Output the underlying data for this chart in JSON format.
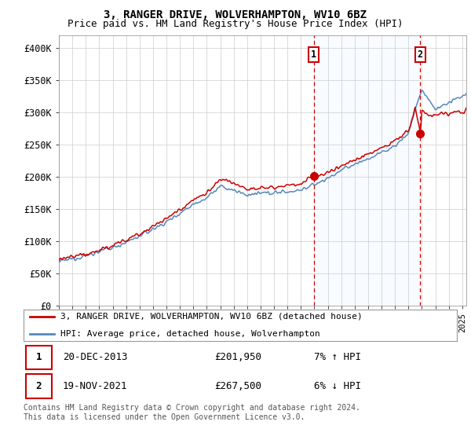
{
  "title": "3, RANGER DRIVE, WOLVERHAMPTON, WV10 6BZ",
  "subtitle": "Price paid vs. HM Land Registry's House Price Index (HPI)",
  "ylabel_ticks": [
    "£0",
    "£50K",
    "£100K",
    "£150K",
    "£200K",
    "£250K",
    "£300K",
    "£350K",
    "£400K"
  ],
  "ytick_values": [
    0,
    50000,
    100000,
    150000,
    200000,
    250000,
    300000,
    350000,
    400000
  ],
  "ylim": [
    0,
    420000
  ],
  "xlim_start": 1995.0,
  "xlim_end": 2025.3,
  "transaction1": {
    "date_num": 2013.97,
    "price": 201950,
    "label": "1"
  },
  "transaction2": {
    "date_num": 2021.88,
    "price": 267500,
    "label": "2"
  },
  "vline1_x": 2013.97,
  "vline2_x": 2021.88,
  "shade_start": 2013.97,
  "shade_end": 2021.88,
  "legend_label_red": "3, RANGER DRIVE, WOLVERHAMPTON, WV10 6BZ (detached house)",
  "legend_label_blue": "HPI: Average price, detached house, Wolverhampton",
  "footnote": "Contains HM Land Registry data © Crown copyright and database right 2024.\nThis data is licensed under the Open Government Licence v3.0.",
  "red_color": "#cc0000",
  "blue_color": "#5588bb",
  "background_color": "#ffffff",
  "shade_color": "#ddeeff",
  "grid_color": "#cccccc",
  "title_fontsize": 10,
  "subtitle_fontsize": 9,
  "tick_fontsize": 8.5,
  "legend_fontsize": 8,
  "table_fontsize": 9,
  "footnote_fontsize": 7
}
